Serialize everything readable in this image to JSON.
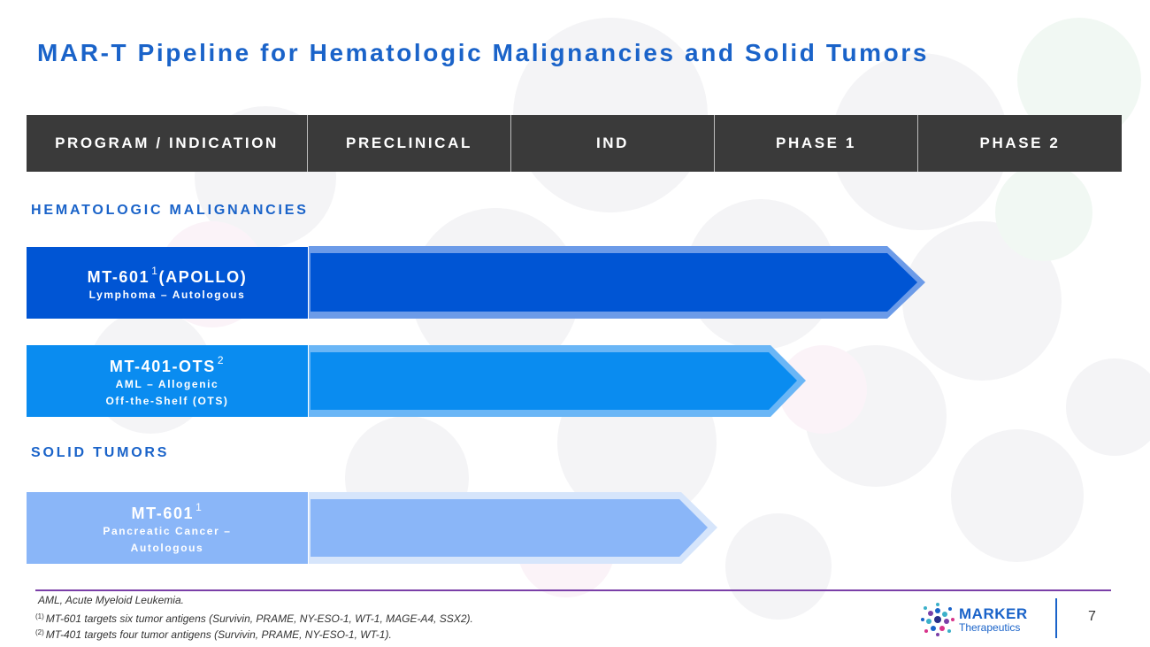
{
  "title": "MAR-T Pipeline for Hematologic Malignancies and Solid Tumors",
  "table_header": {
    "program": "PROGRAM / INDICATION",
    "preclinical": "PRECLINICAL",
    "ind": "IND",
    "phase1": "PHASE 1",
    "phase2": "PHASE 2"
  },
  "sections": {
    "heme": "HEMATOLOGIC MALIGNANCIES",
    "solid": "SOLID TUMORS"
  },
  "programs": [
    {
      "name": "MT-601",
      "sup": "1",
      "suffix": "(APOLLO)",
      "line1": "Lymphoma – Autologous",
      "line2": "",
      "color": "#0055d4",
      "stage": "Phase 1"
    },
    {
      "name": "MT-401-OTS",
      "sup": "2",
      "suffix": "",
      "line1": "AML – Allogenic",
      "line2": "Off-the-Shelf (OTS)",
      "color": "#0a8cf0",
      "stage": "IND"
    },
    {
      "name": "MT-601",
      "sup": "1",
      "suffix": "",
      "line1": "Pancreatic Cancer –",
      "line2": "Autologous",
      "color": "#8ab6f8",
      "stage": "IND"
    }
  ],
  "footnotes": {
    "abbr": "AML, Acute Myeloid Leukemia.",
    "note1_marker": "(1)",
    "note1": "MT-601 targets six tumor antigens (Survivin, PRAME, NY-ESO-1, WT-1, MAGE-A4, SSX2).",
    "note2_marker": "(2)",
    "note2": "MT-401 targets four tumor antigens (Survivin, PRAME, NY-ESO-1, WT-1)."
  },
  "logo": {
    "word": "MARKER",
    "sub": "Therapeutics"
  },
  "page_number": "7",
  "colors": {
    "accent": "#1a63c9",
    "header_bg": "#3a3a3a",
    "divider": "#7a3fa8"
  }
}
